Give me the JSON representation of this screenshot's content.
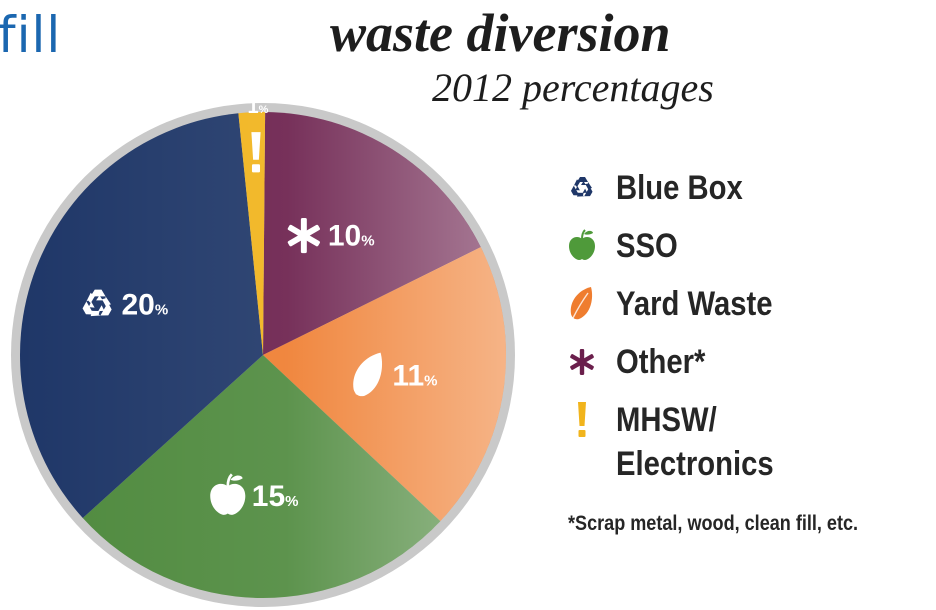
{
  "header": {
    "cut_word": "fill",
    "title": "waste diversion",
    "subtitle": "2012 percentages"
  },
  "chart_data": {
    "type": "pie",
    "title": "waste diversion",
    "subtitle": "2012 percentages",
    "slices": [
      {
        "key": "other",
        "label": "Other*",
        "value": 10,
        "display": "10",
        "color": "#6b1f4c",
        "icon": "asterisk-icon"
      },
      {
        "key": "yard",
        "label": "Yard Waste",
        "value": 11,
        "display": "11",
        "color": "#ef7d2f",
        "icon": "leaf-icon"
      },
      {
        "key": "sso",
        "label": "SSO",
        "value": 15,
        "display": "15",
        "color": "#4f8a3e",
        "icon": "apple-icon"
      },
      {
        "key": "bluebox",
        "label": "Blue Box",
        "value": 20,
        "display": "20",
        "color": "#1f3768",
        "icon": "recycle-icon"
      },
      {
        "key": "mhsw",
        "label": "MHSW/\nElectronics",
        "value": 1,
        "display": "1",
        "color": "#f1b41c",
        "icon": "exclamation-icon"
      }
    ],
    "percent_symbol": "%",
    "legend": {
      "placement": "right",
      "items": [
        {
          "label": "Blue Box",
          "icon": "recycle-icon",
          "color": "#1f3768"
        },
        {
          "label": "SSO",
          "icon": "apple-icon",
          "color": "#4f9a3a"
        },
        {
          "label": "Yard Waste",
          "icon": "leaf-icon",
          "color": "#ef7d2f"
        },
        {
          "label": "Other*",
          "icon": "asterisk-icon",
          "color": "#6b1f4c"
        },
        {
          "label": "MHSW/\nElectronics",
          "icon": "exclamation-icon",
          "color": "#f1b41c"
        }
      ]
    },
    "footnote": "*Scrap metal, wood, clean fill, etc."
  }
}
